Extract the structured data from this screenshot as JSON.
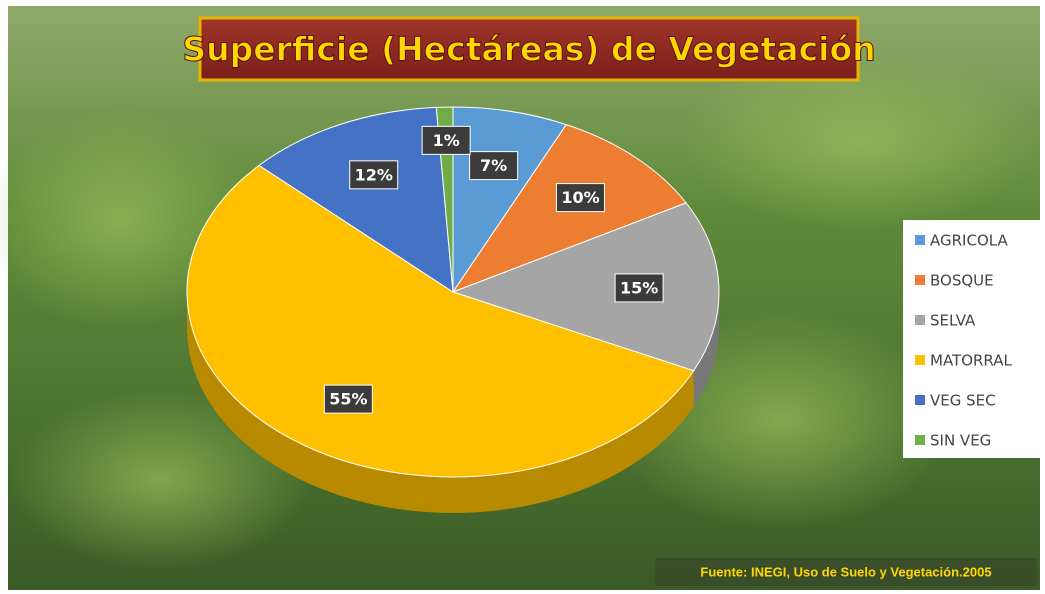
{
  "chart_data": {
    "type": "pie",
    "title": "Superficie (Hectáreas) de Vegetación",
    "categories": [
      "AGRICOLA",
      "BOSQUE",
      "SELVA",
      "MATORRAL",
      "VEG SEC",
      "SIN VEG"
    ],
    "values": [
      7,
      10,
      15,
      55,
      12,
      1
    ],
    "value_labels": [
      "7%",
      "10%",
      "15%",
      "55%",
      "12%",
      "1%"
    ],
    "colors": [
      "#5b9bd5",
      "#ed7d31",
      "#a5a5a5",
      "#ffc000",
      "#4472c4",
      "#70ad47"
    ],
    "legend": "right",
    "source": "Fuente: INEGI, Uso de Suelo y Vegetación.2005"
  }
}
